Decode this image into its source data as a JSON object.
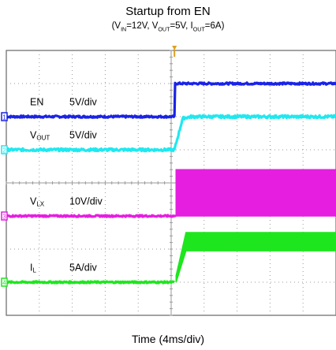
{
  "chart_data": {
    "type": "line",
    "title": "Startup from EN",
    "subtitle": {
      "parts": [
        {
          "t": "(V"
        },
        {
          "t": "IN",
          "sub": true
        },
        {
          "t": "=12V, V"
        },
        {
          "t": "OUT",
          "sub": true
        },
        {
          "t": "=5V, I"
        },
        {
          "t": "OUT",
          "sub": true
        },
        {
          "t": "=6A)"
        }
      ]
    },
    "xlabel": "Time (4ms/div)",
    "grid": true,
    "divisions": {
      "x": 10,
      "y": 8
    },
    "x_range_div": [
      0,
      10
    ],
    "y_range_div": [
      0,
      8
    ],
    "trigger_div": 5.1,
    "channels": [
      {
        "id": "1",
        "name": "EN",
        "name_sub": "",
        "scale": "5V/div",
        "color": "#1a23e6",
        "offset_div": 6.0,
        "points": [
          [
            0,
            0.0
          ],
          [
            5.1,
            0.0
          ],
          [
            5.12,
            1.0
          ],
          [
            10,
            1.0
          ]
        ],
        "noise_div": 0.06
      },
      {
        "id": "2",
        "name": "V",
        "name_sub": "OUT",
        "scale": "5V/div",
        "color": "#1fe8f0",
        "offset_div": 5.0,
        "points": [
          [
            0,
            0.0
          ],
          [
            5.1,
            0.0
          ],
          [
            5.35,
            0.95
          ],
          [
            5.6,
            1.0
          ],
          [
            10,
            1.0
          ]
        ],
        "noise_div": 0.08
      },
      {
        "id": "3",
        "name": "V",
        "name_sub": "LX",
        "scale": "10V/div",
        "color": "#e61ee0",
        "offset_div": 3.0,
        "band": {
          "from_div": 5.15,
          "to_div": 10,
          "low": 0.0,
          "high": 1.4
        },
        "points": [
          [
            0,
            0.0
          ],
          [
            5.15,
            0.0
          ]
        ],
        "noise_div": 0.05
      },
      {
        "id": "4",
        "name": "I",
        "name_sub": "L",
        "scale": "5A/div",
        "color": "#1ee61e",
        "offset_div": 1.0,
        "band": {
          "from_div": 5.15,
          "to_div": 10,
          "low_start": 0.0,
          "low": 0.95,
          "high": 1.5,
          "ramp_end_div": 5.45
        },
        "points": [
          [
            0,
            0.0
          ],
          [
            5.1,
            0.0
          ]
        ],
        "noise_div": 0.05
      }
    ]
  }
}
